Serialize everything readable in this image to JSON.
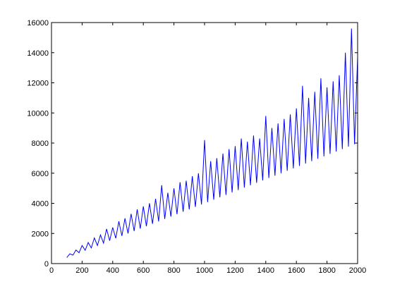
{
  "chart_data": {
    "type": "line",
    "color": "#0000ff",
    "x": [
      100,
      120,
      140,
      160,
      180,
      200,
      220,
      240,
      260,
      280,
      300,
      320,
      340,
      360,
      380,
      400,
      420,
      440,
      460,
      480,
      500,
      520,
      540,
      560,
      580,
      600,
      620,
      640,
      660,
      680,
      700,
      720,
      740,
      760,
      780,
      800,
      820,
      840,
      860,
      880,
      900,
      920,
      940,
      960,
      980,
      1000,
      1020,
      1040,
      1060,
      1080,
      1100,
      1120,
      1140,
      1160,
      1180,
      1200,
      1220,
      1240,
      1260,
      1280,
      1300,
      1320,
      1340,
      1360,
      1380,
      1400,
      1420,
      1440,
      1460,
      1480,
      1500,
      1520,
      1540,
      1560,
      1580,
      1600,
      1620,
      1640,
      1660,
      1680,
      1700,
      1720,
      1740,
      1760,
      1780,
      1800,
      1820,
      1840,
      1860,
      1880,
      1900,
      1920,
      1940,
      1960,
      1980,
      2000
    ],
    "values": [
      400,
      650,
      560,
      900,
      720,
      1200,
      880,
      1400,
      1040,
      1700,
      1200,
      1900,
      1360,
      2300,
      1520,
      2400,
      1680,
      2800,
      1840,
      3000,
      2000,
      3300,
      2160,
      3600,
      2320,
      3800,
      2480,
      4000,
      2640,
      4300,
      2800,
      5200,
      2960,
      4700,
      3120,
      5000,
      3280,
      5400,
      3440,
      5500,
      3600,
      5800,
      3760,
      6000,
      3920,
      8200,
      4080,
      6800,
      4240,
      7000,
      4400,
      7300,
      4560,
      7600,
      4720,
      7800,
      4880,
      8300,
      5040,
      8100,
      5200,
      8500,
      5360,
      8300,
      5520,
      9800,
      5680,
      9000,
      5840,
      9300,
      6000,
      9600,
      6160,
      9900,
      6320,
      10300,
      6480,
      11800,
      6640,
      11000,
      6800,
      11400,
      6960,
      12300,
      7120,
      11700,
      7280,
      12100,
      7440,
      12500,
      7600,
      14000,
      7760,
      15600,
      7920,
      13700
    ],
    "xlim": [
      0,
      2000
    ],
    "xticks": [
      0,
      200,
      400,
      600,
      800,
      1000,
      1200,
      1400,
      1600,
      1800,
      2000
    ],
    "ylim": [
      0,
      16000
    ],
    "yticks": [
      0,
      2000,
      4000,
      6000,
      8000,
      10000,
      12000,
      14000,
      16000
    ]
  }
}
